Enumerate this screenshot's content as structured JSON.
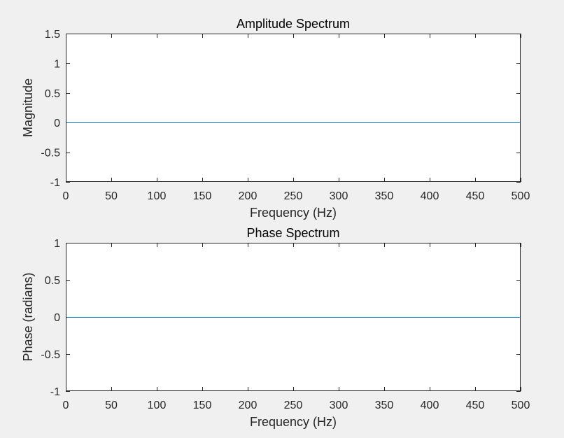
{
  "colors": {
    "figure_background": "#f0f0f0",
    "axes_background": "#ffffff",
    "axes_edge": "#262626",
    "line": "#0072bd"
  },
  "chart_data": [
    {
      "type": "line",
      "title": "Amplitude Spectrum",
      "xlabel": "Frequency (Hz)",
      "ylabel": "Magnitude",
      "xlim": [
        0,
        500
      ],
      "ylim": [
        -1,
        1.5
      ],
      "xticks": [
        0,
        50,
        100,
        150,
        200,
        250,
        300,
        350,
        400,
        450,
        500
      ],
      "xtick_labels": [
        "0",
        "50",
        "100",
        "150",
        "200",
        "250",
        "300",
        "350",
        "400",
        "450",
        "500"
      ],
      "yticks": [
        -1,
        -0.5,
        0,
        0.5,
        1,
        1.5
      ],
      "ytick_labels": [
        "-1",
        "-0.5",
        "0",
        "0.5",
        "1",
        "1.5"
      ],
      "grid": false,
      "series": [
        {
          "x": [
            0,
            500
          ],
          "y": [
            0,
            0
          ],
          "color": "#0072bd"
        }
      ]
    },
    {
      "type": "line",
      "title": "Phase Spectrum",
      "xlabel": "Frequency (Hz)",
      "ylabel": "Phase (radians)",
      "xlim": [
        0,
        500
      ],
      "ylim": [
        -1,
        1
      ],
      "xticks": [
        0,
        50,
        100,
        150,
        200,
        250,
        300,
        350,
        400,
        450,
        500
      ],
      "xtick_labels": [
        "0",
        "50",
        "100",
        "150",
        "200",
        "250",
        "300",
        "350",
        "400",
        "450",
        "500"
      ],
      "yticks": [
        -1,
        -0.5,
        0,
        0.5,
        1
      ],
      "ytick_labels": [
        "-1",
        "-0.5",
        "0",
        "0.5",
        "1"
      ],
      "grid": false,
      "series": [
        {
          "x": [
            0,
            500
          ],
          "y": [
            0,
            0
          ],
          "color": "#0072bd"
        }
      ]
    }
  ]
}
